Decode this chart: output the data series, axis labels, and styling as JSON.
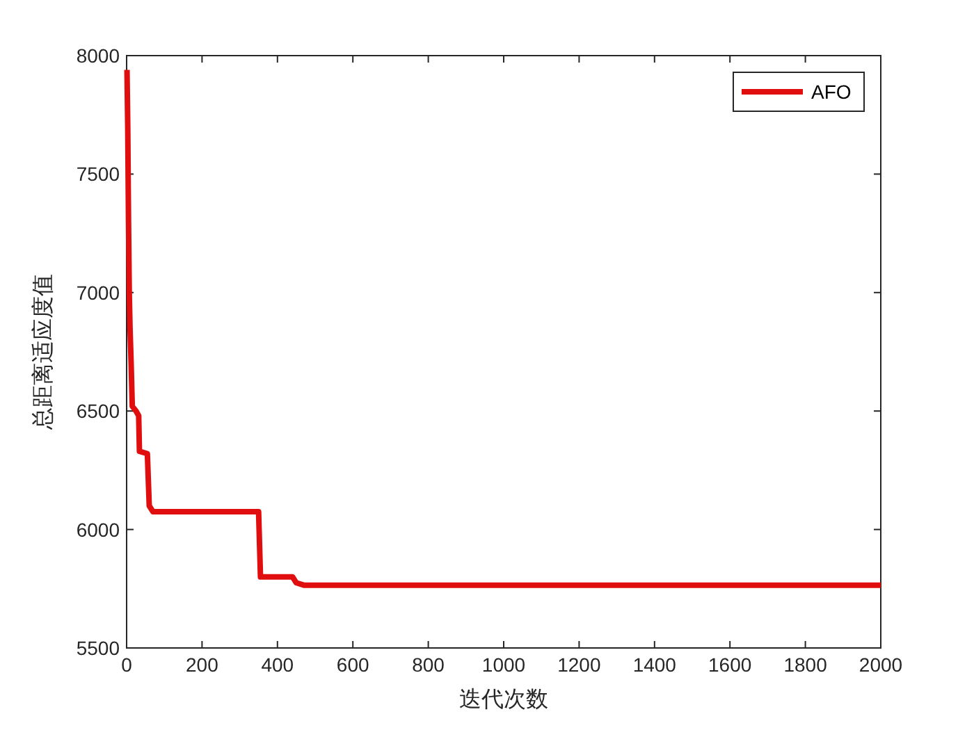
{
  "chart_data": {
    "type": "line",
    "xlabel": "迭代次数",
    "ylabel": "总距离适应度值",
    "xlim": [
      0,
      2000
    ],
    "ylim": [
      5500,
      8000
    ],
    "xticks": [
      0,
      200,
      400,
      600,
      800,
      1000,
      1200,
      1400,
      1600,
      1800,
      2000
    ],
    "yticks": [
      5500,
      6000,
      6500,
      7000,
      7500,
      8000
    ],
    "legend": "top right",
    "x": [
      1,
      3,
      5,
      7,
      9,
      12,
      15,
      25,
      32,
      34,
      55,
      60,
      70,
      350,
      355,
      440,
      450,
      470,
      2000
    ],
    "series": [
      {
        "name": "AFO",
        "color": "#e00e0e",
        "values": [
          7940,
          7700,
          7300,
          7000,
          6850,
          6700,
          6520,
          6500,
          6480,
          6330,
          6320,
          6100,
          6075,
          6075,
          5800,
          5800,
          5775,
          5765,
          5765
        ]
      }
    ]
  }
}
